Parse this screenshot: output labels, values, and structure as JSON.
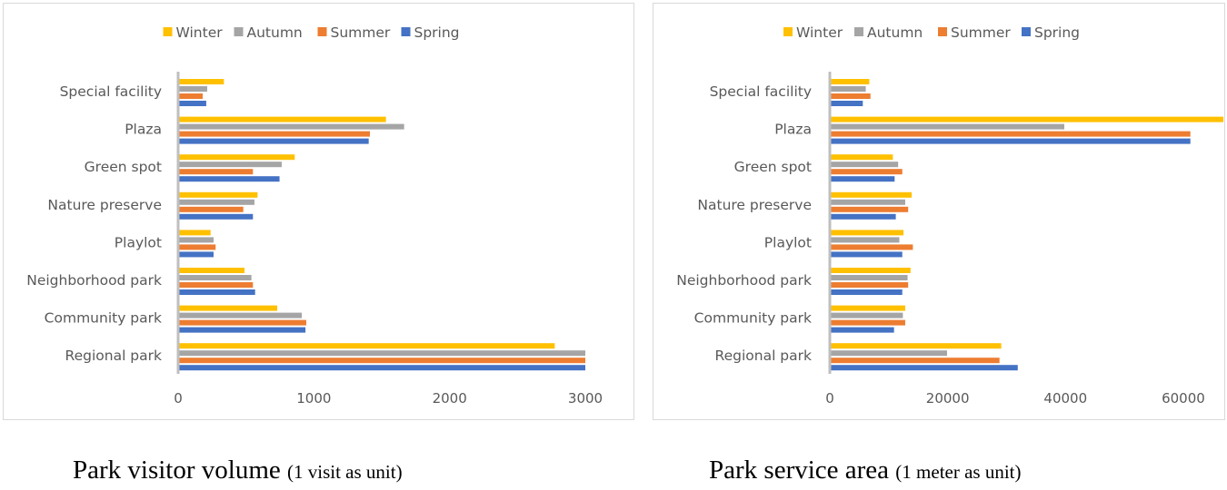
{
  "chart_data": [
    {
      "type": "bar",
      "orientation": "horizontal",
      "categories": [
        "Special facility",
        "Plaza",
        "Green spot",
        "Nature preserve",
        "Playlot",
        "Neighborhood park",
        "Community park",
        "Regional park"
      ],
      "series": [
        {
          "name": "Winter",
          "color": "#FFC000",
          "values": [
            337,
            1531,
            859,
            585,
            239,
            489,
            730,
            2775
          ]
        },
        {
          "name": "Autumn",
          "color": "#A5A5A5",
          "values": [
            214,
            1665,
            763,
            562,
            261,
            540,
            911,
            3000
          ]
        },
        {
          "name": "Summer",
          "color": "#ED7D31",
          "values": [
            181,
            1413,
            551,
            480,
            276,
            551,
            944,
            3000
          ]
        },
        {
          "name": "Spring",
          "color": "#4472C4",
          "values": [
            207,
            1404,
            747,
            551,
            261,
            567,
            938,
            3000
          ]
        }
      ],
      "xlim": [
        0,
        3000
      ],
      "xticks": [
        "0",
        "1000",
        "2000",
        "3000"
      ],
      "xtick_values": [
        0,
        1000,
        2000,
        3000
      ],
      "legend": "top",
      "grid": false,
      "caption": {
        "main": "Park visitor volume",
        "unit": "(1 visit as unit)"
      }
    },
    {
      "type": "bar",
      "orientation": "horizontal",
      "categories": [
        "Special facility",
        "Plaza",
        "Green spot",
        "Nature preserve",
        "Playlot",
        "Neighborhood park",
        "Community park",
        "Regional park"
      ],
      "series": [
        {
          "name": "Winter",
          "color": "#FFC000",
          "values": [
            6700,
            66800,
            10700,
            13900,
            12500,
            13700,
            12800,
            29100
          ]
        },
        {
          "name": "Autumn",
          "color": "#A5A5A5",
          "values": [
            6100,
            39800,
            11600,
            12800,
            11800,
            13200,
            12400,
            19900
          ]
        },
        {
          "name": "Summer",
          "color": "#ED7D31",
          "values": [
            6900,
            61200,
            12300,
            13300,
            14100,
            13300,
            12800,
            28800
          ]
        },
        {
          "name": "Spring",
          "color": "#4472C4",
          "values": [
            5600,
            61200,
            11000,
            11200,
            12300,
            12300,
            10900,
            31900
          ]
        }
      ],
      "xlim": [
        0,
        66800
      ],
      "xticks": [
        "0",
        "20000",
        "40000",
        "60000"
      ],
      "xtick_values": [
        0,
        20000,
        40000,
        60000
      ],
      "legend": "top",
      "grid": false,
      "caption": {
        "main": "Park service area",
        "unit": "(1 meter as unit)"
      }
    }
  ]
}
